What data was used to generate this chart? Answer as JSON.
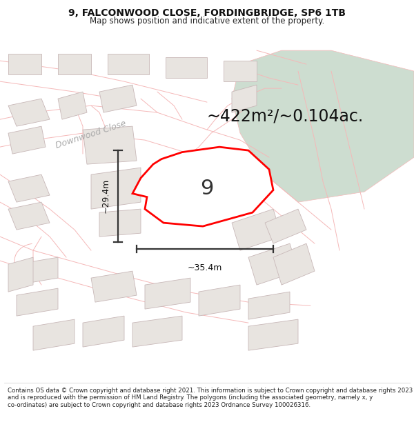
{
  "title": "9, FALCONWOOD CLOSE, FORDINGBRIDGE, SP6 1TB",
  "subtitle": "Map shows position and indicative extent of the property.",
  "area_text": "~422m²/~0.104ac.",
  "number_label": "9",
  "dim_vertical": "~29.4m",
  "dim_horizontal": "~35.4m",
  "street_label": "Downwood Close",
  "footer": "Contains OS data © Crown copyright and database right 2021. This information is subject to Crown copyright and database rights 2023 and is reproduced with the permission of HM Land Registry. The polygons (including the associated geometry, namely x, y co-ordinates) are subject to Crown copyright and database rights 2023 Ordnance Survey 100026316.",
  "bg_color": "#ffffff",
  "map_bg": "#ffffff",
  "road_outline_color": "#f5b8b8",
  "road_fill_color": "#ffffff",
  "building_face_color": "#e8e4e0",
  "building_edge_color": "#c8b8b8",
  "plot_outline_color": "#ff0000",
  "green_area_color": "#cdddd0",
  "dim_line_color": "#333333",
  "title_fontsize": 10,
  "subtitle_fontsize": 8.5,
  "area_fontsize": 17,
  "street_fontsize": 9,
  "number_fontsize": 22,
  "dim_fontsize": 9,
  "footer_fontsize": 6.2,
  "title_color": "#111111",
  "subtitle_color": "#222222",
  "street_label_color": "#aaaaaa"
}
